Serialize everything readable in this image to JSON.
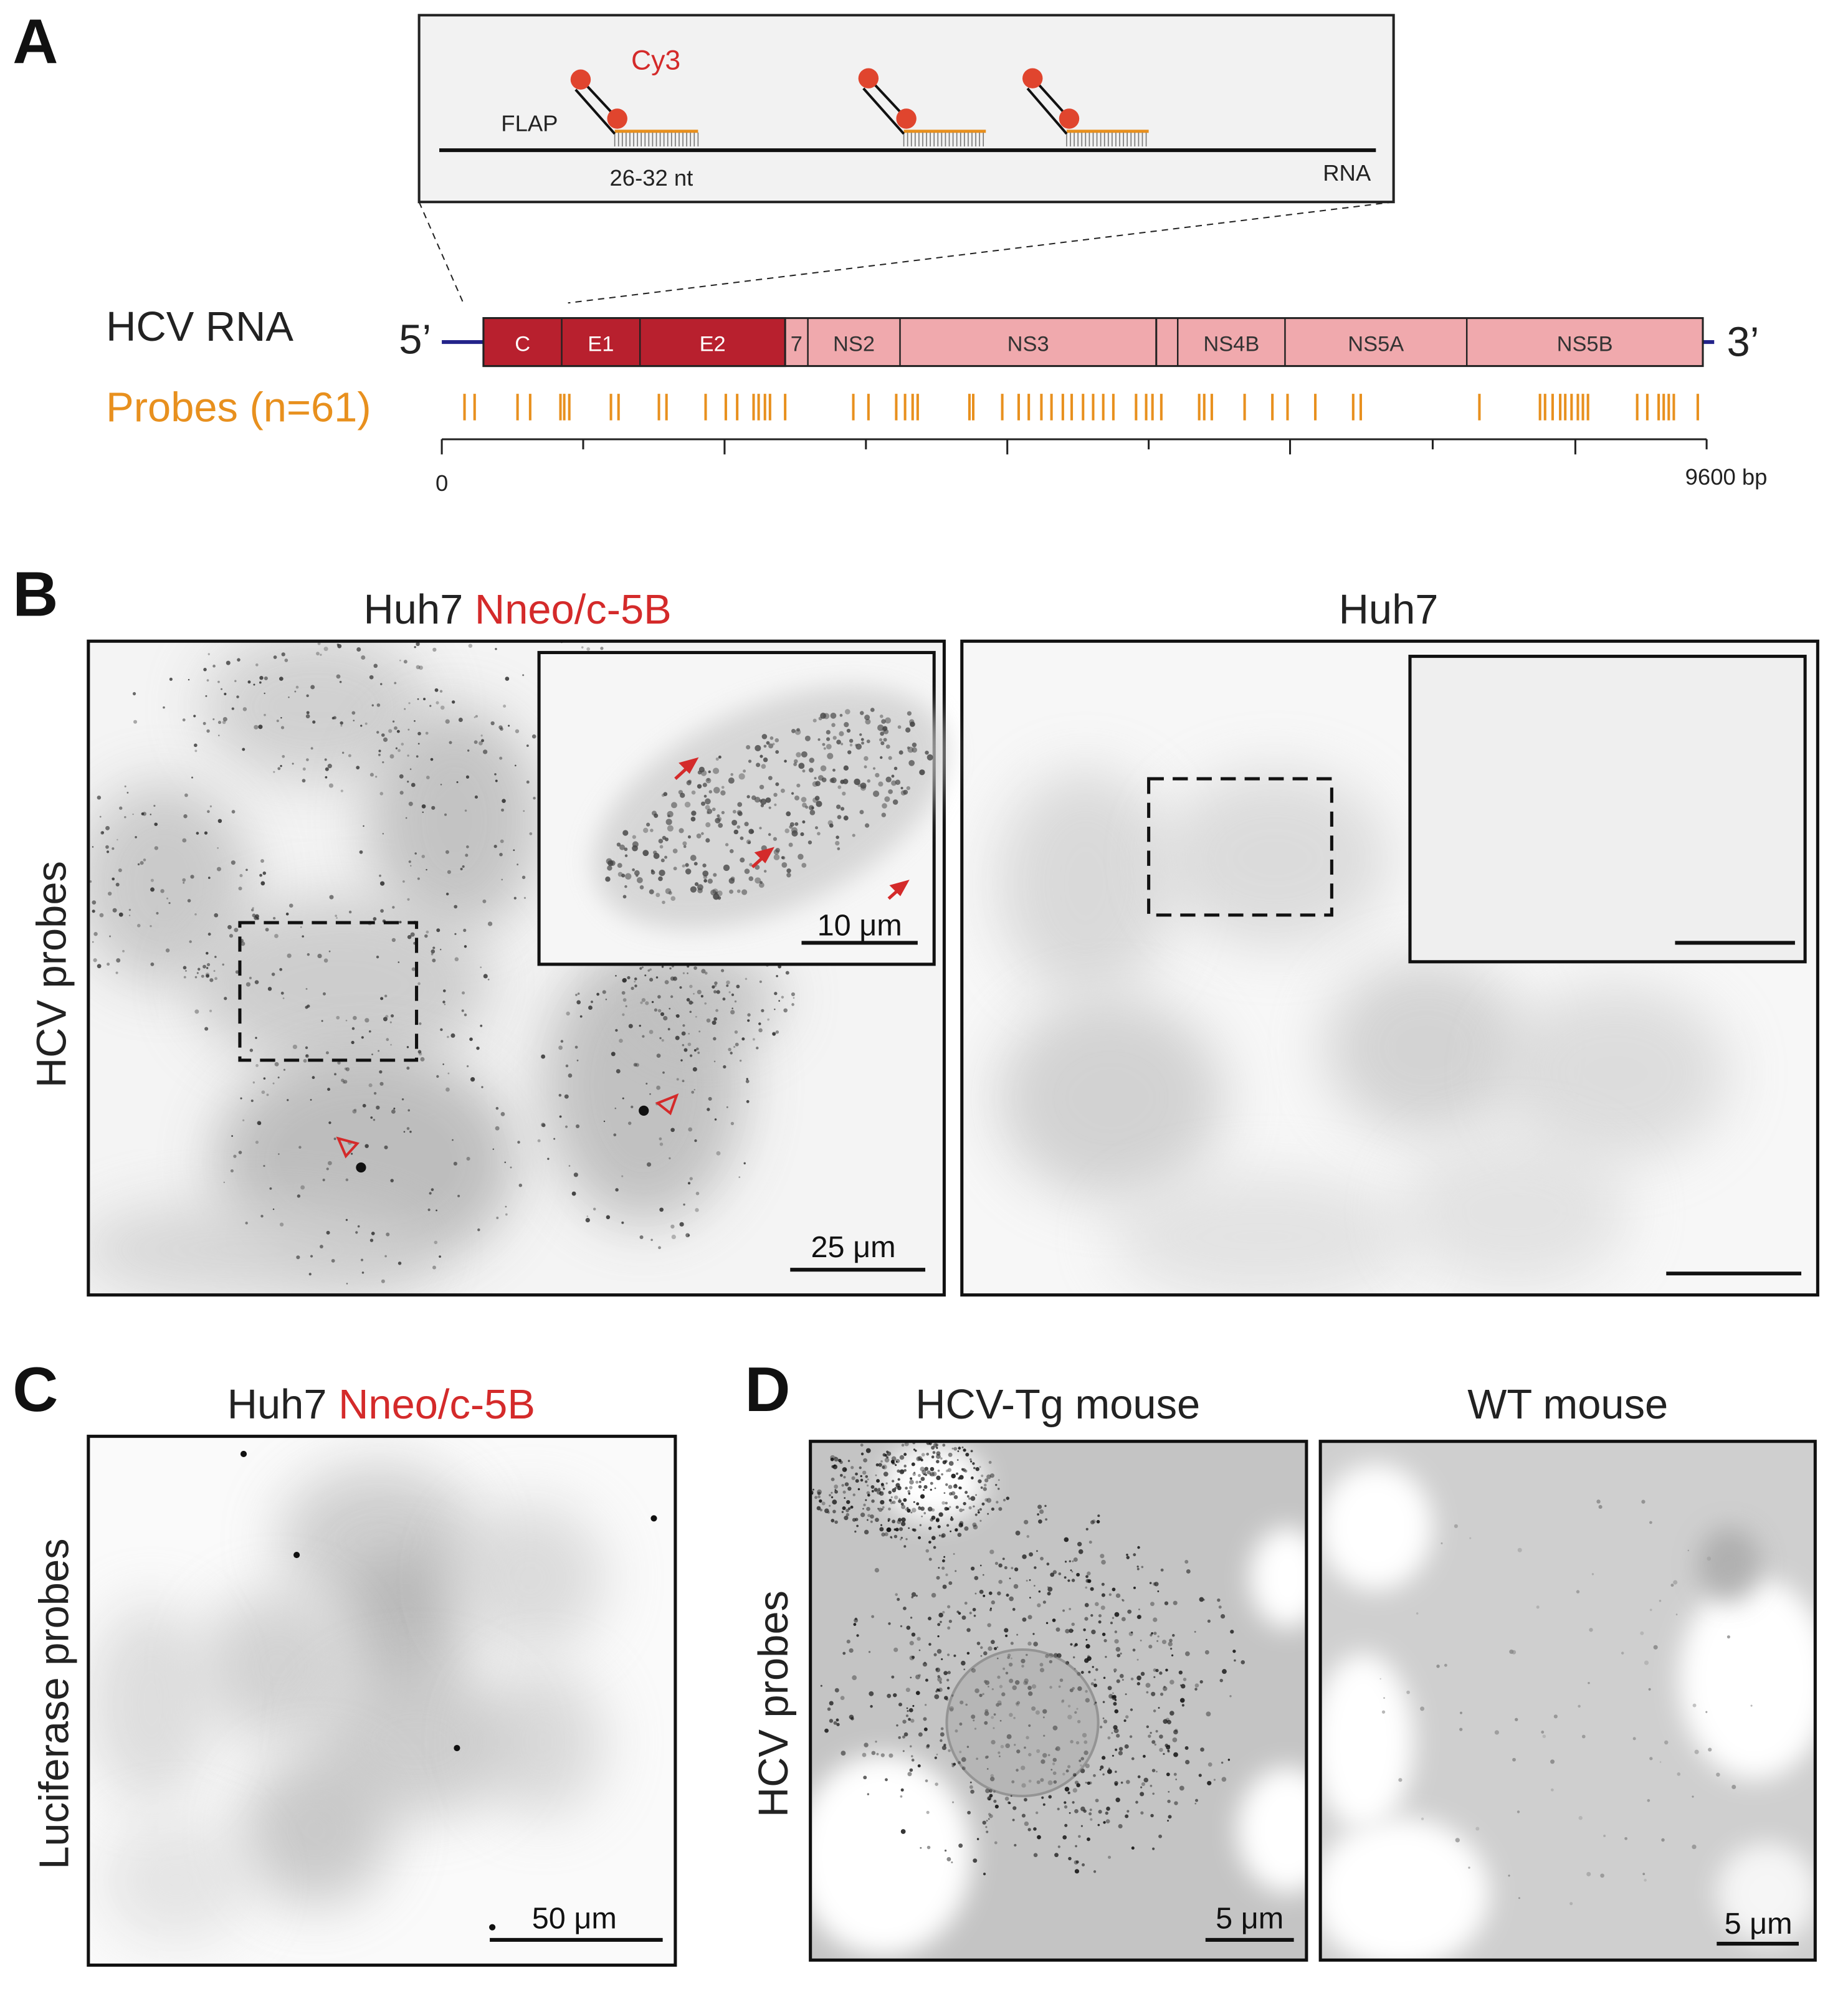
{
  "panels": {
    "A": {
      "letter": "A",
      "inset": {
        "fluor": "Cy3",
        "flap": "FLAP",
        "length": "26-32 nt",
        "strand": "RNA"
      },
      "genome": {
        "label": "HCV RNA",
        "five": "5’",
        "three": "3’",
        "segments": [
          "C",
          "E1",
          "E2",
          "7",
          "NS2",
          "NS3",
          "NS4B",
          "NS5A",
          "NS5B"
        ]
      },
      "probes": "Probes (n=61)",
      "axis": {
        "start": "0",
        "end": "9600 bp"
      }
    },
    "B": {
      "letter": "B",
      "row_label": "HCV probes",
      "left": {
        "title_prefix": "Huh7",
        "title_highlight": "Nneo/c-5B",
        "inset_scale": "10 μm",
        "scale": "25 μm"
      },
      "right": {
        "title": "Huh7"
      }
    },
    "C": {
      "letter": "C",
      "title_prefix": "Huh7",
      "title_highlight": "Nneo/c-5B",
      "row_label": "Luciferase probes",
      "scale": "50 μm"
    },
    "D": {
      "letter": "D",
      "row_label": "HCV probes",
      "left": {
        "title": "HCV-Tg mouse",
        "scale": "5 μm"
      },
      "right": {
        "title": "WT mouse",
        "scale": "5 μm"
      }
    }
  }
}
